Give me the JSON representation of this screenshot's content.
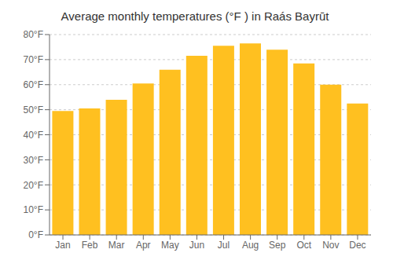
{
  "chart_data": {
    "type": "bar",
    "title": "Average monthly temperatures (°F ) in Raás Bayrūt",
    "categories": [
      "Jan",
      "Feb",
      "Mar",
      "Apr",
      "May",
      "Jun",
      "Jul",
      "Aug",
      "Sep",
      "Oct",
      "Nov",
      "Dec"
    ],
    "values": [
      49.5,
      50.5,
      54,
      60.5,
      66,
      71.5,
      75.5,
      76.5,
      74,
      68.5,
      60,
      52.5
    ],
    "color": "#FFC020",
    "ylim": [
      0,
      80
    ],
    "yticks": [
      {
        "value": 0,
        "label": "0°F"
      },
      {
        "value": 10,
        "label": "10°F"
      },
      {
        "value": 20,
        "label": "20°F"
      },
      {
        "value": 30,
        "label": "30°F"
      },
      {
        "value": 40,
        "label": "40°F"
      },
      {
        "value": 50,
        "label": "50°F"
      },
      {
        "value": 60,
        "label": "60°F"
      },
      {
        "value": 70,
        "label": "70°F"
      },
      {
        "value": 80,
        "label": "80°F"
      }
    ],
    "grid": true
  }
}
